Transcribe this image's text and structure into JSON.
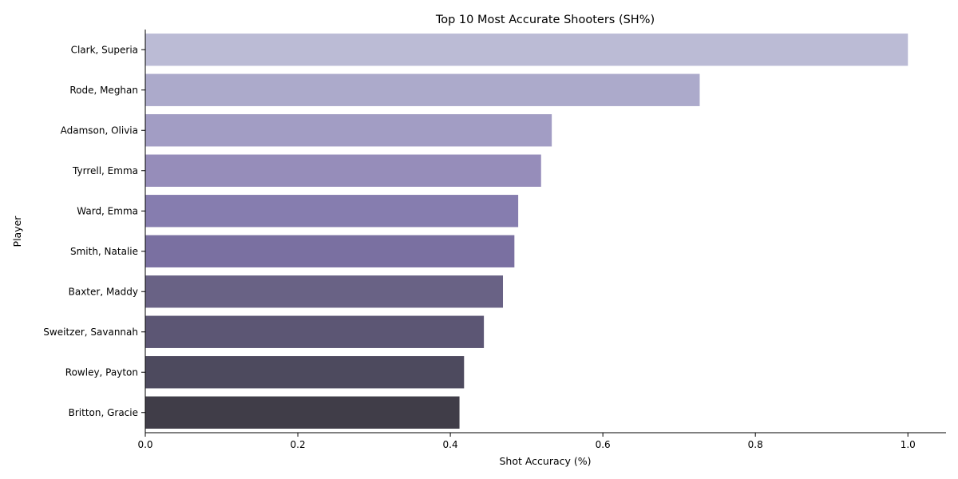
{
  "chart_data": {
    "type": "bar",
    "orientation": "horizontal",
    "title": "Top 10 Most Accurate Shooters (SH%)",
    "xlabel": "Shot Accuracy (%)",
    "ylabel": "Player",
    "xlim": [
      0,
      1.05
    ],
    "xticks": [
      "0.0",
      "0.2",
      "0.4",
      "0.6",
      "0.8",
      "1.0"
    ],
    "grid": false,
    "legend": false,
    "categories": [
      "Clark, Superia",
      "Rode, Meghan",
      "Adamson, Olivia",
      "Tyrrell, Emma",
      "Ward, Emma",
      "Smith, Natalie",
      "Baxter, Maddy",
      "Sweitzer, Savannah",
      "Rowley, Payton",
      "Britton, Gracie"
    ],
    "values": [
      1.0,
      0.727,
      0.533,
      0.519,
      0.489,
      0.484,
      0.469,
      0.444,
      0.418,
      0.412
    ],
    "colors": [
      "#bbbbd5",
      "#acaacb",
      "#a29dc4",
      "#968dba",
      "#867daf",
      "#7a70a1",
      "#696285",
      "#5c5674",
      "#4d4a5e",
      "#403d48"
    ]
  }
}
